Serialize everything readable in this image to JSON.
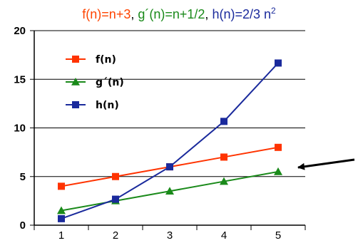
{
  "chart_data": {
    "type": "line",
    "title_parts": [
      {
        "text": "f(n)=n+3",
        "color": "#ff4400"
      },
      {
        "text": ", ",
        "color": "#000000"
      },
      {
        "text": "g´(n)=n+1/2",
        "color": "#1a8a1a"
      },
      {
        "text": ", ",
        "color": "#000000"
      },
      {
        "text": "h(n)=2/3 n",
        "color": "#1a2a9c"
      },
      {
        "text": "2",
        "color": "#1a2a9c",
        "superscript": true
      }
    ],
    "categories": [
      "1",
      "2",
      "3",
      "4",
      "5"
    ],
    "series": [
      {
        "name": "f(n)",
        "color": "#ff3300",
        "marker": "square",
        "values": [
          4,
          5,
          6,
          7,
          8
        ]
      },
      {
        "name": "g´(n)",
        "color": "#1a8a1a",
        "marker": "triangle",
        "values": [
          1.5,
          2.5,
          3.5,
          4.5,
          5.5
        ]
      },
      {
        "name": "h(n)",
        "color": "#1a2a9c",
        "marker": "square",
        "values": [
          0.67,
          2.67,
          6,
          10.67,
          16.67
        ]
      }
    ],
    "ylim": [
      0,
      20
    ],
    "yticks": [
      "0",
      "5",
      "10",
      "15",
      "20"
    ],
    "grid": "horizontal",
    "legend": "top-left",
    "annotation": {
      "type": "arrow",
      "points_to": "g´(n)"
    }
  }
}
